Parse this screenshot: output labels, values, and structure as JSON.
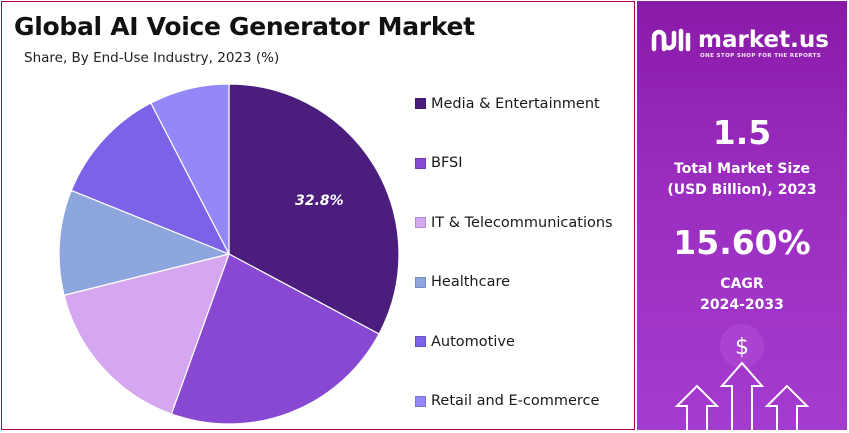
{
  "header": {
    "title": "Global AI Voice Generator Market",
    "subtitle": "Share, By End-Use Industry, 2023 (%)"
  },
  "chart_data": {
    "type": "pie",
    "title": "Global AI Voice Generator Market",
    "subtitle": "Share, By End-Use Industry, 2023 (%)",
    "legend_position": "right",
    "slices": [
      {
        "label": "Media & Entertainment",
        "value": 32.8,
        "color": "#4b1e7e",
        "data_label": "32.8%"
      },
      {
        "label": "BFSI",
        "value": 22.7,
        "color": "#8848d1",
        "data_label": ""
      },
      {
        "label": "IT & Telecommunications",
        "value": 15.6,
        "color": "#d4a7f0",
        "data_label": ""
      },
      {
        "label": "Healthcare",
        "value": 10.0,
        "color": "#8ea6de",
        "data_label": ""
      },
      {
        "label": "Automotive",
        "value": 11.3,
        "color": "#7b62e6",
        "data_label": ""
      },
      {
        "label": "Retail and E-commerce",
        "value": 7.6,
        "color": "#9487f7",
        "data_label": ""
      }
    ]
  },
  "sidebar": {
    "brand_name": "market.us",
    "brand_tagline": "ONE STOP SHOP FOR THE REPORTS",
    "market_size_value": "1.5",
    "market_size_label_1": "Total Market Size",
    "market_size_label_2": "(USD Billion), 2023",
    "cagr_value": "15.60%",
    "cagr_label_1": "CAGR",
    "cagr_label_2": "2024-2033",
    "dollar_glyph": "$",
    "colors": {
      "panel": "#9b2ec0",
      "text": "#ffffff"
    }
  }
}
